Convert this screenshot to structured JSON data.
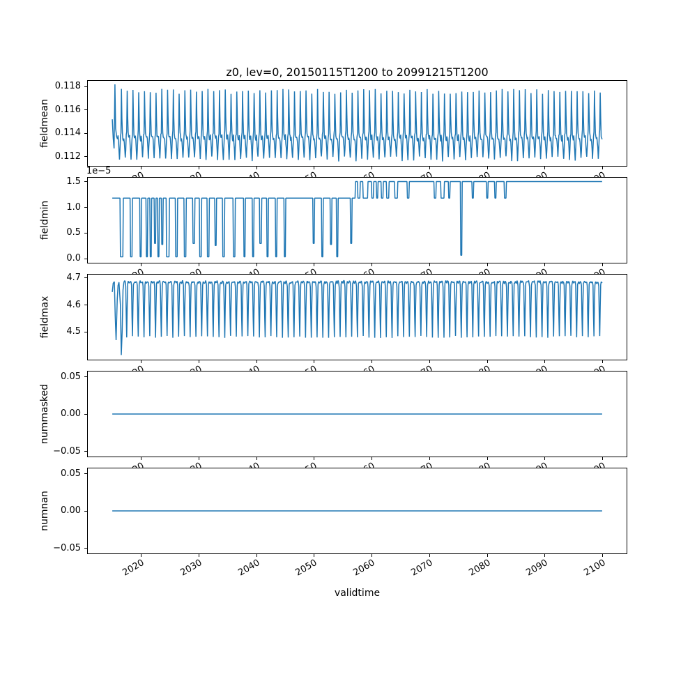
{
  "figure": {
    "title": "z0, lev=0, 20150115T1200 to 20991215T1200",
    "xlabel": "validtime",
    "line_color": "#1f77b4",
    "background": "#ffffff",
    "xaxis": {
      "lim": [
        2010.8,
        2104.2
      ],
      "ticks": [
        2020,
        2030,
        2040,
        2050,
        2060,
        2070,
        2080,
        2090,
        2100
      ],
      "tick_labels": [
        "2020",
        "2030",
        "2040",
        "2050",
        "2060",
        "2070",
        "2080",
        "2090",
        "2100"
      ],
      "data_range": [
        2015.04,
        2099.96
      ]
    }
  },
  "chart_data": [
    {
      "type": "line",
      "ylabel": "fieldmean",
      "ylim": [
        0.1112,
        0.1185
      ],
      "yticks": [
        0.112,
        0.114,
        0.116,
        0.118
      ],
      "ytick_labels": [
        "0.112",
        "0.114",
        "0.116",
        "0.118"
      ],
      "series_spec": {
        "kind": "seasonal",
        "monthly": [
          0.1137,
          0.1133,
          0.1126,
          0.1118,
          0.1127,
          0.1137,
          0.1141,
          0.1176,
          0.1154,
          0.1139,
          0.1136,
          0.1135
        ],
        "noise": 0.00022,
        "seed": 7,
        "transient_until": 2016,
        "transient": [
          [
            2015.04,
            0.1152
          ],
          [
            2015.2,
            0.1136
          ],
          [
            2015.35,
            0.1127
          ],
          [
            2015.5,
            0.1182
          ],
          [
            2015.62,
            0.1144
          ],
          [
            2015.8,
            0.1137
          ],
          [
            2015.95,
            0.1135
          ]
        ]
      }
    },
    {
      "type": "line",
      "ylabel": "fieldmin",
      "offset_text": "1e−5",
      "ylim": [
        -0.075,
        1.575
      ],
      "yticks": [
        0.0,
        0.5,
        1.0,
        1.5
      ],
      "ytick_labels": [
        "0.0",
        "0.5",
        "1.0",
        "1.5"
      ],
      "series_spec": {
        "kind": "step",
        "base_segments": [
          [
            2015.04,
            2057.2,
            1.18
          ],
          [
            2057.2,
            2099.96,
            1.5
          ]
        ],
        "dips": [
          [
            2016.4,
            2016.9,
            0.04
          ],
          [
            2018.2,
            2018.5,
            0.04
          ],
          [
            2019.8,
            2020.1,
            0.04
          ],
          [
            2020.9,
            2021.15,
            0.04
          ],
          [
            2021.6,
            2021.85,
            0.04
          ],
          [
            2022.3,
            2022.55,
            0.3
          ],
          [
            2022.9,
            2023.15,
            0.04
          ],
          [
            2023.6,
            2023.85,
            0.28
          ],
          [
            2024.4,
            2024.9,
            0.04
          ],
          [
            2026.0,
            2026.3,
            0.04
          ],
          [
            2027.5,
            2027.8,
            0.04
          ],
          [
            2029.0,
            2029.3,
            0.3
          ],
          [
            2030.2,
            2030.5,
            0.04
          ],
          [
            2031.5,
            2031.8,
            0.04
          ],
          [
            2032.8,
            2033.05,
            0.26
          ],
          [
            2034.2,
            2034.5,
            0.04
          ],
          [
            2036.0,
            2036.3,
            0.04
          ],
          [
            2037.8,
            2038.05,
            0.04
          ],
          [
            2039.3,
            2039.6,
            0.04
          ],
          [
            2040.6,
            2040.9,
            0.3
          ],
          [
            2041.8,
            2042.1,
            0.04
          ],
          [
            2043.3,
            2043.6,
            0.04
          ],
          [
            2044.8,
            2045.1,
            0.04
          ],
          [
            2049.8,
            2050.05,
            0.3
          ],
          [
            2051.3,
            2051.6,
            0.04
          ],
          [
            2052.8,
            2053.05,
            0.28
          ],
          [
            2053.9,
            2054.2,
            0.04
          ],
          [
            2056.3,
            2056.6,
            0.3
          ],
          [
            2057.6,
            2058.0,
            1.18
          ],
          [
            2058.5,
            2059.3,
            1.18
          ],
          [
            2060.0,
            2060.3,
            1.18
          ],
          [
            2060.8,
            2061.1,
            1.18
          ],
          [
            2061.7,
            2062.0,
            1.18
          ],
          [
            2062.6,
            2063.0,
            1.18
          ],
          [
            2064.0,
            2064.5,
            1.18
          ],
          [
            2066.2,
            2066.5,
            1.18
          ],
          [
            2070.8,
            2071.2,
            1.18
          ],
          [
            2072.0,
            2072.6,
            1.18
          ],
          [
            2073.3,
            2073.6,
            1.18
          ],
          [
            2075.4,
            2075.65,
            0.07
          ],
          [
            2077.4,
            2077.7,
            1.18
          ],
          [
            2079.9,
            2080.2,
            1.18
          ],
          [
            2081.3,
            2081.6,
            1.18
          ],
          [
            2083.0,
            2083.3,
            1.18
          ]
        ]
      }
    },
    {
      "type": "line",
      "ylabel": "fieldmax",
      "ylim": [
        4.398,
        4.712
      ],
      "yticks": [
        4.5,
        4.6,
        4.7
      ],
      "ytick_labels": [
        "4.5",
        "4.6",
        "4.7"
      ],
      "series_spec": {
        "kind": "seasonal",
        "monthly": [
          4.682,
          4.685,
          4.687,
          4.684,
          4.67,
          4.56,
          4.482,
          4.596,
          4.676,
          4.684,
          4.686,
          4.683
        ],
        "noise": 0.004,
        "seed": 11,
        "transient_until": 2017,
        "transient": [
          [
            2015.04,
            4.648
          ],
          [
            2015.2,
            4.68
          ],
          [
            2015.4,
            4.686
          ],
          [
            2015.55,
            4.56
          ],
          [
            2015.7,
            4.47
          ],
          [
            2015.9,
            4.62
          ],
          [
            2016.04,
            4.672
          ],
          [
            2016.2,
            4.684
          ],
          [
            2016.45,
            4.6
          ],
          [
            2016.6,
            4.415
          ],
          [
            2016.75,
            4.5
          ],
          [
            2016.9,
            4.655
          ]
        ]
      }
    },
    {
      "type": "line",
      "ylabel": "nummasked",
      "ylim": [
        -0.057,
        0.057
      ],
      "yticks": [
        -0.05,
        0.0,
        0.05
      ],
      "ytick_labels": [
        "−0.05",
        "0.00",
        "0.05"
      ],
      "series_spec": {
        "kind": "flat",
        "value": 0.0
      }
    },
    {
      "type": "line",
      "ylabel": "numnan",
      "ylim": [
        -0.057,
        0.057
      ],
      "yticks": [
        -0.05,
        0.0,
        0.05
      ],
      "ytick_labels": [
        "−0.05",
        "0.00",
        "0.05"
      ],
      "series_spec": {
        "kind": "flat",
        "value": 0.0
      }
    }
  ]
}
